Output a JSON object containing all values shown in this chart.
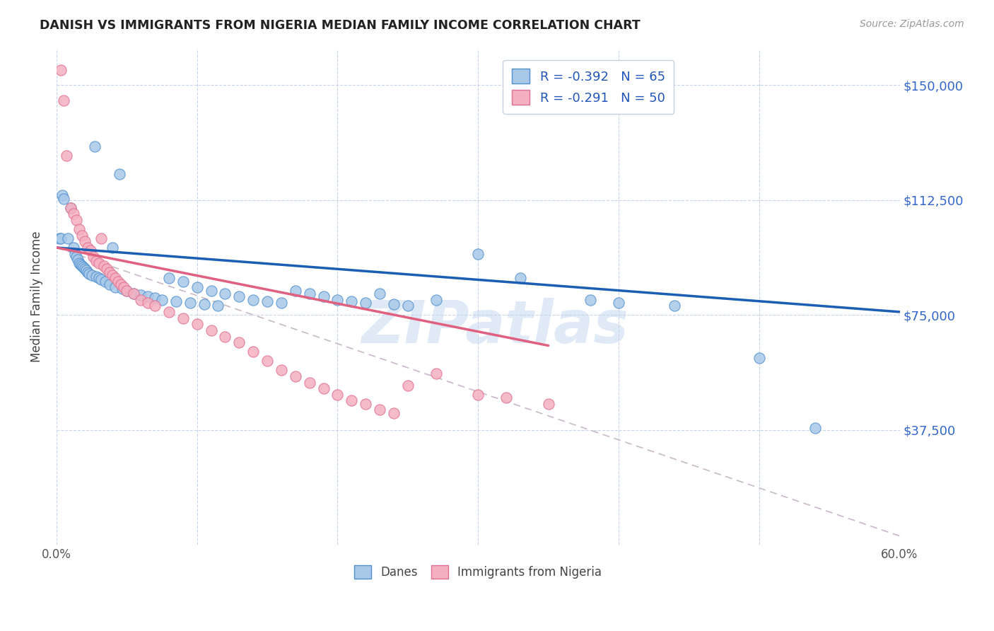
{
  "title": "DANISH VS IMMIGRANTS FROM NIGERIA MEDIAN FAMILY INCOME CORRELATION CHART",
  "source": "Source: ZipAtlas.com",
  "ylabel": "Median Family Income",
  "yticks": [
    0,
    37500,
    75000,
    112500,
    150000
  ],
  "ytick_labels": [
    "",
    "$37,500",
    "$75,000",
    "$112,500",
    "$150,000"
  ],
  "xmin": 0.0,
  "xmax": 0.6,
  "ymin": 0,
  "ymax": 162000,
  "watermark": "ZIPatlas",
  "legend_line1": "R = -0.392   N = 65",
  "legend_line2": "R = -0.291   N = 50",
  "danes_color": "#a8c8e8",
  "nigeria_color": "#f4b0c0",
  "danes_edge_color": "#5090d0",
  "nigeria_edge_color": "#e07090",
  "danes_line_color": "#1a5fb4",
  "nigeria_line_color": "#e06080",
  "danes_scatter": [
    [
      0.002,
      100000
    ],
    [
      0.003,
      100000
    ],
    [
      0.004,
      114000
    ],
    [
      0.005,
      113000
    ],
    [
      0.008,
      100000
    ],
    [
      0.01,
      110000
    ],
    [
      0.012,
      97000
    ],
    [
      0.013,
      95000
    ],
    [
      0.014,
      94000
    ],
    [
      0.015,
      93000
    ],
    [
      0.016,
      92000
    ],
    [
      0.017,
      91500
    ],
    [
      0.018,
      91000
    ],
    [
      0.019,
      90500
    ],
    [
      0.02,
      90000
    ],
    [
      0.021,
      89500
    ],
    [
      0.022,
      89000
    ],
    [
      0.023,
      88500
    ],
    [
      0.025,
      88000
    ],
    [
      0.027,
      130000
    ],
    [
      0.028,
      87500
    ],
    [
      0.03,
      87000
    ],
    [
      0.032,
      86500
    ],
    [
      0.035,
      86000
    ],
    [
      0.038,
      85000
    ],
    [
      0.04,
      97000
    ],
    [
      0.042,
      84000
    ],
    [
      0.045,
      121000
    ],
    [
      0.047,
      83500
    ],
    [
      0.05,
      83000
    ],
    [
      0.055,
      82000
    ],
    [
      0.06,
      81500
    ],
    [
      0.065,
      81000
    ],
    [
      0.07,
      80500
    ],
    [
      0.075,
      80000
    ],
    [
      0.08,
      87000
    ],
    [
      0.085,
      79500
    ],
    [
      0.09,
      86000
    ],
    [
      0.095,
      79000
    ],
    [
      0.1,
      84000
    ],
    [
      0.105,
      78500
    ],
    [
      0.11,
      83000
    ],
    [
      0.115,
      78000
    ],
    [
      0.12,
      82000
    ],
    [
      0.13,
      81000
    ],
    [
      0.14,
      80000
    ],
    [
      0.15,
      79500
    ],
    [
      0.16,
      79000
    ],
    [
      0.17,
      83000
    ],
    [
      0.18,
      82000
    ],
    [
      0.19,
      81000
    ],
    [
      0.2,
      80000
    ],
    [
      0.21,
      79500
    ],
    [
      0.22,
      79000
    ],
    [
      0.23,
      82000
    ],
    [
      0.24,
      78500
    ],
    [
      0.25,
      78000
    ],
    [
      0.27,
      80000
    ],
    [
      0.3,
      95000
    ],
    [
      0.33,
      87000
    ],
    [
      0.38,
      80000
    ],
    [
      0.4,
      79000
    ],
    [
      0.44,
      78000
    ],
    [
      0.5,
      61000
    ],
    [
      0.54,
      38000
    ]
  ],
  "nigeria_scatter": [
    [
      0.003,
      155000
    ],
    [
      0.005,
      145000
    ],
    [
      0.007,
      127000
    ],
    [
      0.01,
      110000
    ],
    [
      0.012,
      108000
    ],
    [
      0.014,
      106000
    ],
    [
      0.016,
      103000
    ],
    [
      0.018,
      101000
    ],
    [
      0.02,
      99000
    ],
    [
      0.022,
      97000
    ],
    [
      0.024,
      96000
    ],
    [
      0.026,
      94000
    ],
    [
      0.028,
      92500
    ],
    [
      0.03,
      92000
    ],
    [
      0.032,
      100000
    ],
    [
      0.034,
      91000
    ],
    [
      0.036,
      90000
    ],
    [
      0.038,
      89000
    ],
    [
      0.04,
      88000
    ],
    [
      0.042,
      87000
    ],
    [
      0.044,
      86000
    ],
    [
      0.046,
      85000
    ],
    [
      0.048,
      84000
    ],
    [
      0.05,
      83000
    ],
    [
      0.055,
      82000
    ],
    [
      0.06,
      80000
    ],
    [
      0.065,
      79000
    ],
    [
      0.07,
      78000
    ],
    [
      0.08,
      76000
    ],
    [
      0.09,
      74000
    ],
    [
      0.1,
      72000
    ],
    [
      0.11,
      70000
    ],
    [
      0.12,
      68000
    ],
    [
      0.13,
      66000
    ],
    [
      0.14,
      63000
    ],
    [
      0.15,
      60000
    ],
    [
      0.16,
      57000
    ],
    [
      0.17,
      55000
    ],
    [
      0.18,
      53000
    ],
    [
      0.19,
      51000
    ],
    [
      0.2,
      49000
    ],
    [
      0.21,
      47000
    ],
    [
      0.22,
      46000
    ],
    [
      0.23,
      44000
    ],
    [
      0.24,
      43000
    ],
    [
      0.25,
      52000
    ],
    [
      0.27,
      56000
    ],
    [
      0.3,
      49000
    ],
    [
      0.32,
      48000
    ],
    [
      0.35,
      46000
    ]
  ],
  "danes_trendline": [
    [
      0.0,
      97000
    ],
    [
      0.6,
      76000
    ]
  ],
  "nigeria_trendline": [
    [
      0.0,
      97000
    ],
    [
      0.35,
      65000
    ]
  ],
  "diagonal_line": [
    [
      0.0,
      97000
    ],
    [
      0.65,
      -5000
    ]
  ]
}
